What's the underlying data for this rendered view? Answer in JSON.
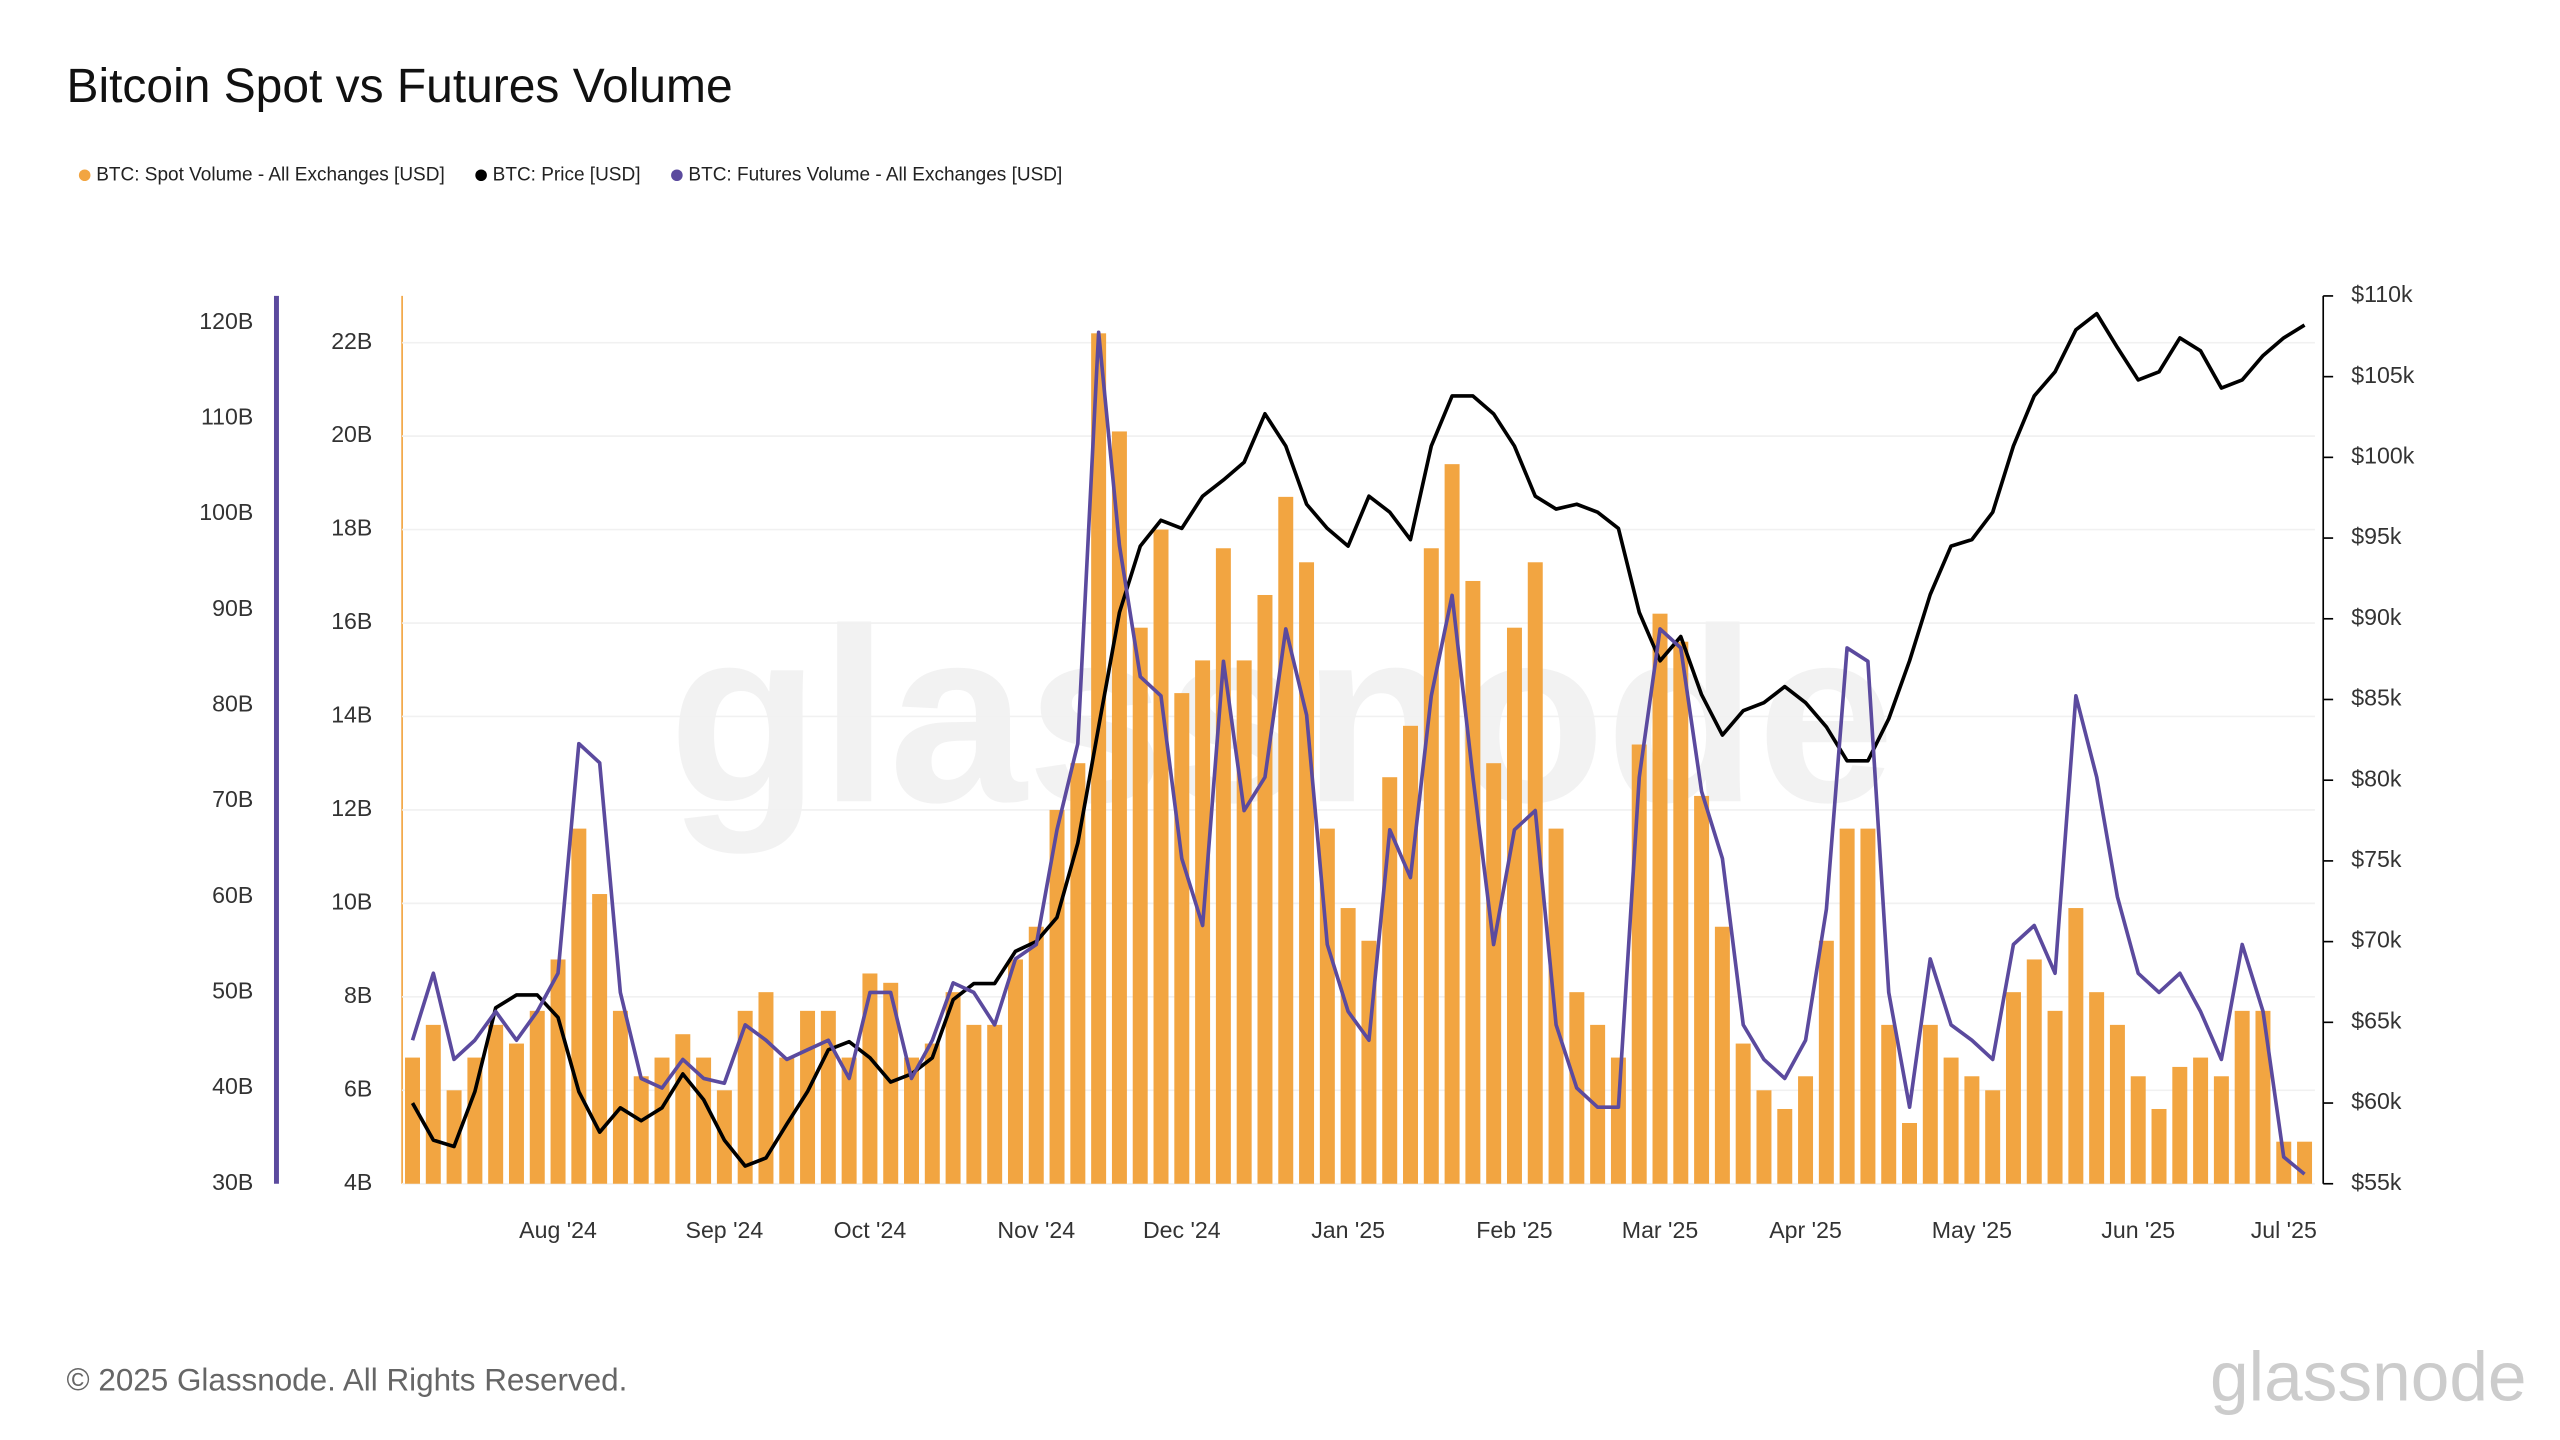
{
  "chart_data": {
    "type": "bar",
    "title": "Bitcoin Spot vs Futures Volume",
    "watermark": "glassnode",
    "footer": "© 2025 Glassnode. All Rights Reserved.",
    "logo": "glassnode",
    "grid": true,
    "categories": [
      null,
      null,
      null,
      null,
      null,
      null,
      null,
      "Aug '24",
      null,
      null,
      null,
      null,
      null,
      null,
      null,
      "Sep '24",
      null,
      null,
      null,
      null,
      null,
      null,
      "Oct '24",
      null,
      null,
      null,
      null,
      null,
      null,
      null,
      "Nov '24",
      null,
      null,
      null,
      null,
      null,
      null,
      "Dec '24",
      null,
      null,
      null,
      null,
      null,
      null,
      null,
      "Jan '25",
      null,
      null,
      null,
      null,
      null,
      null,
      null,
      "Feb '25",
      null,
      null,
      null,
      null,
      null,
      null,
      "Mar '25",
      null,
      null,
      null,
      null,
      null,
      null,
      "Apr '25",
      null,
      null,
      null,
      null,
      null,
      null,
      null,
      "May '25",
      null,
      null,
      null,
      null,
      null,
      null,
      null,
      "Jun '25",
      null,
      null,
      null,
      null,
      null,
      null,
      "Jul '25",
      null
    ],
    "ylim": [
      4,
      23
    ],
    "yticks": [
      {
        "value": 4,
        "label": "4B"
      },
      {
        "value": 6,
        "label": "6B"
      },
      {
        "value": 8,
        "label": "8B"
      },
      {
        "value": 10,
        "label": "10B"
      },
      {
        "value": 12,
        "label": "12B"
      },
      {
        "value": 14,
        "label": "14B"
      },
      {
        "value": 16,
        "label": "16B"
      },
      {
        "value": 18,
        "label": "18B"
      },
      {
        "value": 20,
        "label": "20B"
      },
      {
        "value": 22,
        "label": "22B"
      }
    ],
    "y2lim": [
      55,
      110
    ],
    "y2ticks": [
      {
        "value": 55,
        "label": "$55k"
      },
      {
        "value": 60,
        "label": "$60k"
      },
      {
        "value": 65,
        "label": "$65k"
      },
      {
        "value": 70,
        "label": "$70k"
      },
      {
        "value": 75,
        "label": "$75k"
      },
      {
        "value": 80,
        "label": "$80k"
      },
      {
        "value": 85,
        "label": "$85k"
      },
      {
        "value": 90,
        "label": "$90k"
      },
      {
        "value": 95,
        "label": "$95k"
      },
      {
        "value": 100,
        "label": "$100k"
      },
      {
        "value": 105,
        "label": "$105k"
      },
      {
        "value": 110,
        "label": "$110k"
      }
    ],
    "y3lim": [
      30,
      122.8
    ],
    "y3ticks": [
      {
        "value": 30,
        "label": "30B"
      },
      {
        "value": 40,
        "label": "40B"
      },
      {
        "value": 50,
        "label": "50B"
      },
      {
        "value": 60,
        "label": "60B"
      },
      {
        "value": 70,
        "label": "70B"
      },
      {
        "value": 80,
        "label": "80B"
      },
      {
        "value": 90,
        "label": "90B"
      },
      {
        "value": 100,
        "label": "100B"
      },
      {
        "value": 110,
        "label": "110B"
      },
      {
        "value": 120,
        "label": "120B"
      }
    ],
    "series": [
      {
        "name": "BTC: Spot Volume - All Exchanges [USD]",
        "type": "bar",
        "axis": "y",
        "color": "#f2a541",
        "values": [
          6.7,
          7.4,
          6.0,
          6.7,
          7.4,
          7.0,
          7.7,
          8.8,
          11.6,
          10.2,
          7.7,
          6.3,
          6.7,
          7.2,
          6.7,
          6.0,
          7.7,
          8.1,
          6.7,
          7.7,
          7.7,
          6.7,
          8.5,
          8.3,
          6.7,
          7.0,
          8.1,
          7.4,
          7.4,
          8.8,
          9.5,
          12.0,
          13.0,
          22.2,
          20.1,
          15.9,
          18.0,
          14.5,
          15.2,
          17.6,
          15.2,
          16.6,
          18.7,
          17.3,
          11.6,
          9.9,
          9.2,
          12.7,
          13.8,
          17.6,
          19.4,
          16.9,
          13.0,
          15.9,
          17.3,
          11.6,
          8.1,
          7.4,
          6.7,
          13.4,
          16.2,
          15.6,
          12.3,
          9.5,
          7.0,
          6.0,
          5.6,
          6.3,
          9.2,
          11.6,
          11.6,
          7.4,
          5.3,
          7.4,
          6.7,
          6.3,
          6.0,
          8.1,
          8.8,
          7.7,
          9.9,
          8.1,
          7.4,
          6.3,
          5.6,
          6.5,
          6.7,
          6.3,
          7.7,
          7.7,
          4.9,
          4.9
        ]
      },
      {
        "name": "BTC: Price [USD]",
        "type": "line",
        "axis": "y2",
        "color": "#000000",
        "values": [
          60.0,
          57.7,
          57.3,
          60.7,
          65.9,
          66.7,
          66.7,
          65.3,
          60.7,
          58.2,
          59.7,
          58.9,
          59.7,
          61.8,
          60.2,
          57.7,
          56.1,
          56.6,
          58.7,
          60.7,
          63.3,
          63.8,
          62.8,
          61.3,
          61.8,
          62.8,
          66.4,
          67.4,
          67.4,
          69.4,
          70.0,
          71.5,
          76.1,
          83.3,
          90.4,
          94.5,
          96.1,
          95.6,
          97.6,
          98.6,
          99.7,
          102.7,
          100.7,
          97.1,
          95.6,
          94.5,
          97.6,
          96.6,
          94.9,
          100.7,
          103.8,
          103.8,
          102.7,
          100.7,
          97.6,
          96.8,
          97.1,
          96.6,
          95.6,
          90.4,
          87.4,
          88.9,
          85.3,
          82.8,
          84.3,
          84.8,
          85.8,
          84.8,
          83.3,
          81.2,
          81.2,
          83.8,
          87.4,
          91.5,
          94.5,
          94.9,
          96.6,
          100.7,
          103.8,
          105.3,
          107.9,
          108.9,
          106.8,
          104.8,
          105.3,
          107.4,
          106.6,
          104.3,
          104.8,
          106.3,
          107.4,
          108.2
        ]
      },
      {
        "name": "BTC: Futures Volume - All Exchanges [USD]",
        "type": "line",
        "axis": "y3",
        "color": "#5b4a9e",
        "values": [
          45,
          52,
          43,
          45,
          48,
          45,
          48,
          52,
          76,
          74,
          50,
          41,
          40,
          43,
          41,
          40.5,
          46.6,
          45,
          43,
          44,
          45,
          41,
          50,
          50,
          41,
          45,
          51,
          50,
          46.6,
          53.5,
          55,
          67,
          76,
          119,
          96.7,
          83,
          81,
          64,
          57,
          84.6,
          69,
          72.5,
          88,
          79,
          55,
          48,
          45,
          67,
          62,
          81,
          91.5,
          72.5,
          55,
          67,
          69,
          46.6,
          40,
          38,
          38,
          72.5,
          88,
          86,
          71,
          64,
          46.6,
          43,
          41,
          45,
          58.7,
          86,
          84.6,
          50,
          38,
          53.5,
          46.6,
          45,
          43,
          55,
          57,
          52,
          81,
          72.5,
          60,
          52,
          50,
          52,
          48,
          43,
          55,
          48,
          32.8,
          31
        ]
      }
    ]
  }
}
